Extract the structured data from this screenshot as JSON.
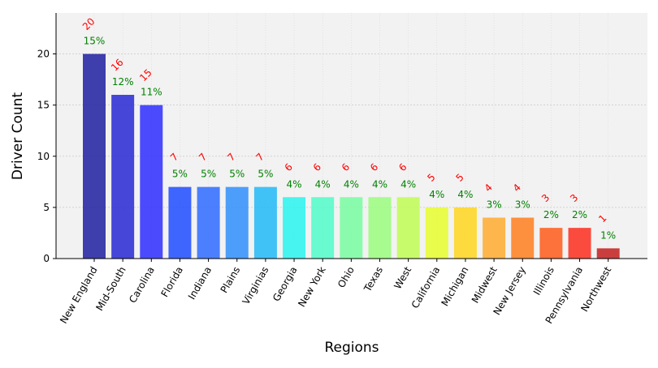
{
  "chart_data": {
    "type": "bar",
    "title": "",
    "xlabel": "Regions",
    "ylabel": "Driver Count",
    "ylim": [
      0,
      24
    ],
    "yticks": [
      0,
      5,
      10,
      15,
      20
    ],
    "grid": true,
    "categories": [
      "New England",
      "Mid-South",
      "Carolina",
      "Florida",
      "Indiana",
      "Plains",
      "Virginias",
      "Georgia",
      "New York",
      "Ohio",
      "Texas",
      "West",
      "California",
      "Michigan",
      "Midwest",
      "New Jersey",
      "Illinois",
      "Pennsylvania",
      "Northwest"
    ],
    "values": [
      20,
      16,
      15,
      7,
      7,
      7,
      7,
      6,
      6,
      6,
      6,
      6,
      5,
      5,
      4,
      4,
      3,
      3,
      1
    ],
    "value_labels": [
      "20",
      "16",
      "15",
      "7",
      "7",
      "7",
      "7",
      "6",
      "6",
      "6",
      "6",
      "6",
      "5",
      "5",
      "4",
      "4",
      "3",
      "3",
      "1"
    ],
    "percent_labels": [
      "15%",
      "12%",
      "11%",
      "5%",
      "5%",
      "5%",
      "5%",
      "4%",
      "4%",
      "4%",
      "4%",
      "4%",
      "4%",
      "4%",
      "3%",
      "3%",
      "2%",
      "2%",
      "1%"
    ],
    "colors": [
      "#1f1fa0",
      "#2828d4",
      "#2e2eff",
      "#1f4cff",
      "#2e6bff",
      "#2f8ffb",
      "#21baf8",
      "#29f5ef",
      "#51fcc9",
      "#78fda1",
      "#9afd7e",
      "#c1fd55",
      "#e8fd2e",
      "#ffd61e",
      "#ffac2e",
      "#ff7f1f",
      "#ff5a1a",
      "#fb2e1f",
      "#c41f1f"
    ],
    "value_label_color": "#ff0000",
    "percent_label_color": "#008000",
    "plot_background": "#f2f2f2"
  }
}
